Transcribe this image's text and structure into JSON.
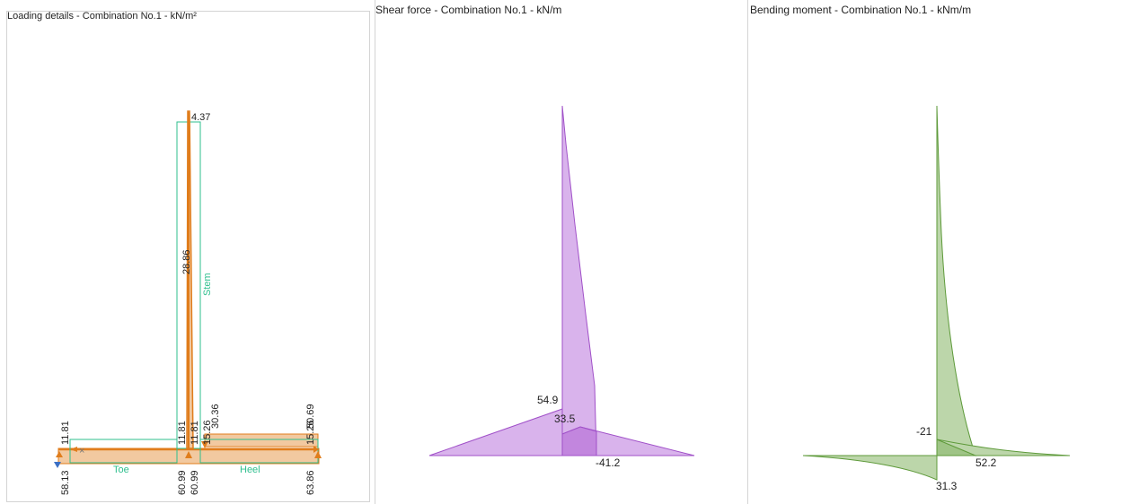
{
  "loading": {
    "title": "Loading details - Combination No.1 - kN/m²",
    "stem_label": "Stem",
    "toe_label": "Toe",
    "heel_label": "Heel",
    "values": {
      "top_stem": "4.37",
      "stem_side": "28.86",
      "toe_left_top": "11.81",
      "toe_right_top": "11.81",
      "stem_base_top": "11.81",
      "heel_left_a": "15.26",
      "heel_left_b": "30.36",
      "heel_right_a": "15.26",
      "heel_right_b": "50.69",
      "toe_left_bottom": "58.13",
      "toe_right_bottom": "60.99",
      "stem_base_bottom": "60.99",
      "heel_right_bottom": "63.86"
    },
    "colors": {
      "load": "#e07d1c",
      "load_fill": "#f2c9a0",
      "outline": "#2fbf8e",
      "reaction": "#3a6fc4"
    }
  },
  "shear": {
    "title": "Shear force - Combination No.1 - kN/m",
    "labels": {
      "toe": "54.9",
      "stem_base": "33.5",
      "heel": "-41.2"
    },
    "colors": {
      "stroke": "#a050c8",
      "fill": "#d9b3ec",
      "fill_dark": "#c286de"
    }
  },
  "moment": {
    "title": "Bending moment - Combination No.1 - kNm/m",
    "labels": {
      "stem_base": "-21",
      "heel": "52.2",
      "toe": "31.3"
    },
    "colors": {
      "stroke": "#5e9a3a",
      "fill": "#bcd6aa",
      "fill_dark": "#9fc486"
    }
  }
}
